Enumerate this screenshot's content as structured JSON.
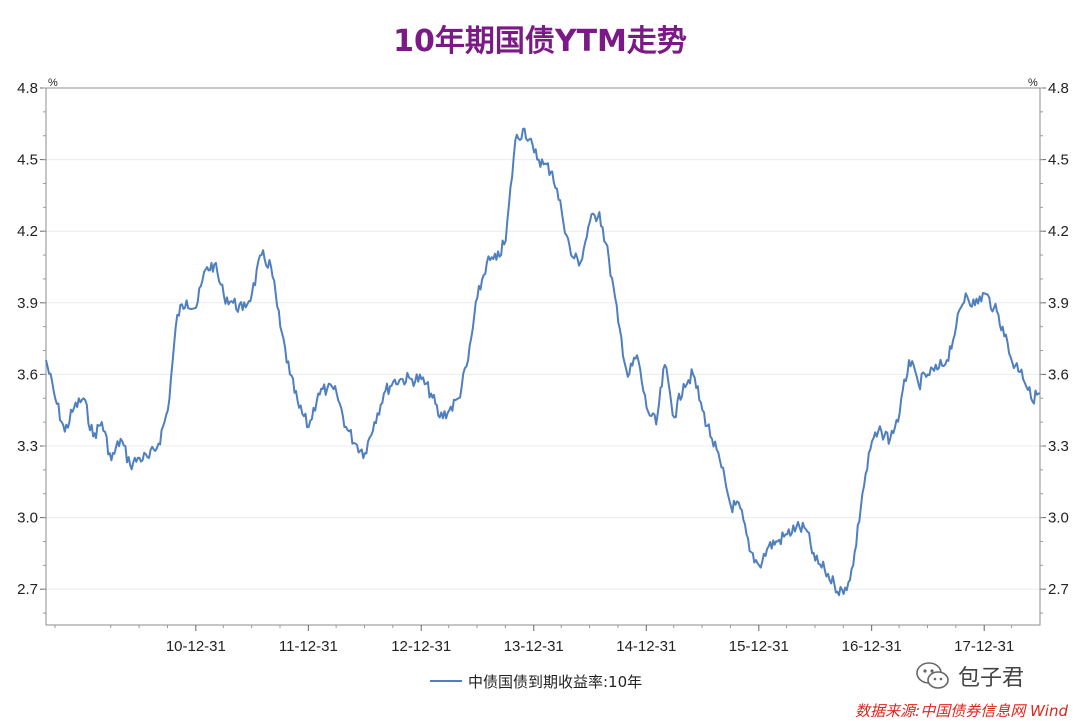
{
  "chart_data": {
    "type": "line",
    "title": "10年期国债YTM走势",
    "y_unit_left": "%",
    "y_unit_right": "%",
    "ylim": [
      2.55,
      4.8
    ],
    "yticks": [
      "4.8",
      "4.5",
      "4.2",
      "3.9",
      "3.6",
      "3.3",
      "3.0",
      "2.7"
    ],
    "ytick_values": [
      4.8,
      4.5,
      4.2,
      3.9,
      3.6,
      3.3,
      3.0,
      2.7
    ],
    "xlim": [
      "2009-09-01",
      "2018-06-30"
    ],
    "xticks": [
      "10-12-31",
      "11-12-31",
      "12-12-31",
      "13-12-31",
      "14-12-31",
      "15-12-31",
      "16-12-31",
      "17-12-31"
    ],
    "xtick_dates": [
      "2010-12-31",
      "2011-12-31",
      "2012-12-31",
      "2013-12-31",
      "2014-12-31",
      "2015-12-31",
      "2016-12-31",
      "2017-12-31"
    ],
    "grid": true,
    "legend": "bottom",
    "series": [
      {
        "name": "中债国债到期收益率:10年",
        "color": "#4f7fbf",
        "points": [
          [
            "2009-09-01",
            3.66
          ],
          [
            "2009-10-01",
            3.5
          ],
          [
            "2009-11-01",
            3.36
          ],
          [
            "2009-12-01",
            3.46
          ],
          [
            "2010-01-01",
            3.5
          ],
          [
            "2010-02-01",
            3.34
          ],
          [
            "2010-03-01",
            3.4
          ],
          [
            "2010-04-01",
            3.24
          ],
          [
            "2010-05-01",
            3.33
          ],
          [
            "2010-06-01",
            3.22
          ],
          [
            "2010-07-01",
            3.25
          ],
          [
            "2010-08-01",
            3.25
          ],
          [
            "2010-09-01",
            3.31
          ],
          [
            "2010-10-01",
            3.45
          ],
          [
            "2010-11-01",
            3.85
          ],
          [
            "2010-12-01",
            3.91
          ],
          [
            "2011-01-01",
            3.88
          ],
          [
            "2011-02-01",
            4.04
          ],
          [
            "2011-03-01",
            4.06
          ],
          [
            "2011-04-01",
            3.93
          ],
          [
            "2011-05-01",
            3.9
          ],
          [
            "2011-06-01",
            3.87
          ],
          [
            "2011-07-01",
            3.94
          ],
          [
            "2011-08-01",
            4.1
          ],
          [
            "2011-09-01",
            4.05
          ],
          [
            "2011-10-01",
            3.8
          ],
          [
            "2011-11-01",
            3.6
          ],
          [
            "2011-12-01",
            3.46
          ],
          [
            "2012-01-01",
            3.38
          ],
          [
            "2012-02-01",
            3.52
          ],
          [
            "2012-03-01",
            3.54
          ],
          [
            "2012-04-01",
            3.52
          ],
          [
            "2012-05-01",
            3.38
          ],
          [
            "2012-06-01",
            3.31
          ],
          [
            "2012-07-01",
            3.27
          ],
          [
            "2012-08-01",
            3.4
          ],
          [
            "2012-09-01",
            3.52
          ],
          [
            "2012-10-01",
            3.57
          ],
          [
            "2012-11-01",
            3.58
          ],
          [
            "2012-12-01",
            3.58
          ],
          [
            "2013-01-01",
            3.58
          ],
          [
            "2013-02-01",
            3.52
          ],
          [
            "2013-03-01",
            3.42
          ],
          [
            "2013-04-01",
            3.45
          ],
          [
            "2013-05-01",
            3.5
          ],
          [
            "2013-06-01",
            3.66
          ],
          [
            "2013-07-01",
            3.92
          ],
          [
            "2013-08-01",
            4.07
          ],
          [
            "2013-09-01",
            4.08
          ],
          [
            "2013-10-01",
            4.16
          ],
          [
            "2013-11-01",
            4.58
          ],
          [
            "2013-12-01",
            4.63
          ],
          [
            "2014-01-01",
            4.53
          ],
          [
            "2014-02-01",
            4.48
          ],
          [
            "2014-03-01",
            4.45
          ],
          [
            "2014-04-01",
            4.28
          ],
          [
            "2014-05-01",
            4.1
          ],
          [
            "2014-06-01",
            4.07
          ],
          [
            "2014-07-01",
            4.24
          ],
          [
            "2014-08-01",
            4.28
          ],
          [
            "2014-09-01",
            4.08
          ],
          [
            "2014-10-01",
            3.82
          ],
          [
            "2014-11-01",
            3.59
          ],
          [
            "2014-12-01",
            3.68
          ],
          [
            "2015-01-01",
            3.46
          ],
          [
            "2015-02-01",
            3.39
          ],
          [
            "2015-03-01",
            3.64
          ],
          [
            "2015-04-01",
            3.42
          ],
          [
            "2015-05-01",
            3.56
          ],
          [
            "2015-06-01",
            3.6
          ],
          [
            "2015-07-01",
            3.45
          ],
          [
            "2015-08-01",
            3.33
          ],
          [
            "2015-09-01",
            3.21
          ],
          [
            "2015-10-01",
            3.05
          ],
          [
            "2015-11-01",
            3.04
          ],
          [
            "2015-12-01",
            2.86
          ],
          [
            "2016-01-01",
            2.8
          ],
          [
            "2016-02-01",
            2.88
          ],
          [
            "2016-03-01",
            2.9
          ],
          [
            "2016-04-01",
            2.93
          ],
          [
            "2016-05-01",
            2.96
          ],
          [
            "2016-06-01",
            2.95
          ],
          [
            "2016-07-01",
            2.82
          ],
          [
            "2016-08-01",
            2.78
          ],
          [
            "2016-09-01",
            2.72
          ],
          [
            "2016-10-01",
            2.68
          ],
          [
            "2016-11-01",
            2.8
          ],
          [
            "2016-12-01",
            3.1
          ],
          [
            "2017-01-01",
            3.32
          ],
          [
            "2017-02-01",
            3.36
          ],
          [
            "2017-03-01",
            3.33
          ],
          [
            "2017-04-01",
            3.44
          ],
          [
            "2017-05-01",
            3.66
          ],
          [
            "2017-06-01",
            3.56
          ],
          [
            "2017-07-01",
            3.6
          ],
          [
            "2017-08-01",
            3.62
          ],
          [
            "2017-09-01",
            3.66
          ],
          [
            "2017-10-01",
            3.8
          ],
          [
            "2017-11-01",
            3.94
          ],
          [
            "2017-12-01",
            3.89
          ],
          [
            "2018-01-01",
            3.94
          ],
          [
            "2018-02-01",
            3.88
          ],
          [
            "2018-03-01",
            3.8
          ],
          [
            "2018-04-01",
            3.65
          ],
          [
            "2018-05-01",
            3.62
          ],
          [
            "2018-06-01",
            3.5
          ],
          [
            "2018-06-30",
            3.52
          ]
        ]
      }
    ]
  },
  "legend": {
    "label": "中债国债到期收益率:10年"
  },
  "watermark": {
    "text": "包子君",
    "icon": "wechat-icon"
  },
  "source_note": "数据来源:中国债券信息网 Wind"
}
